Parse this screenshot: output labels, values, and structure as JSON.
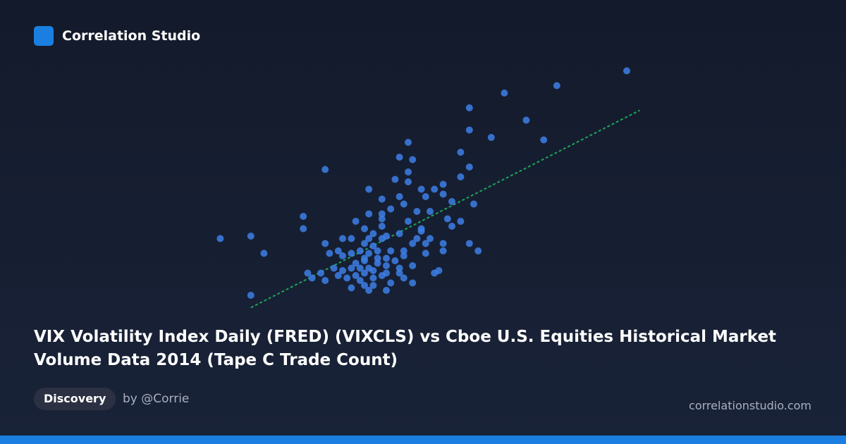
{
  "brand": "Correlation Studio",
  "tag": "Discovery",
  "author": "by @Corrie",
  "site": "correlationstudio.com",
  "chart_data": {
    "type": "scatter",
    "title": "VIX Volatility Index Daily (FRED) (VIXCLS) vs Cboe U.S. Equities Historical Market Volume Data 2014 (Tape C Trade Count)",
    "color": "#3d7fe6",
    "xlim": [
      0,
      100
    ],
    "ylim": [
      0,
      100
    ],
    "x": [
      95,
      67,
      79,
      59,
      72,
      59,
      64,
      76,
      45,
      57,
      43,
      46,
      59,
      26,
      45,
      57,
      42,
      45,
      53,
      36,
      51,
      39,
      43,
      49,
      53,
      55,
      60,
      2,
      9,
      12,
      21,
      21,
      9,
      57,
      61,
      59,
      53,
      53,
      52,
      51,
      46,
      40,
      36,
      32,
      22,
      26,
      50,
      47,
      41,
      36,
      39,
      54,
      55,
      48,
      47,
      43,
      39,
      33,
      30,
      29,
      27,
      32,
      35,
      37,
      41,
      44,
      49,
      49,
      46,
      43,
      40,
      37,
      33,
      30,
      28,
      25,
      23,
      26,
      29,
      35,
      38,
      40,
      36,
      35,
      39,
      37,
      35,
      42,
      44,
      32,
      33,
      37,
      39,
      41,
      35,
      40,
      34,
      38,
      36,
      40,
      45,
      48,
      46,
      32,
      30,
      34,
      37,
      43,
      44,
      31,
      44,
      48,
      39,
      50,
      36,
      35,
      38,
      34
    ],
    "values": [
      97,
      88,
      91,
      82,
      77,
      73,
      70,
      69,
      68,
      64,
      62,
      61,
      58,
      57,
      56,
      54,
      53,
      52,
      51,
      49,
      49,
      45,
      46,
      46,
      47,
      44,
      43,
      29,
      30,
      23,
      38,
      33,
      6,
      36,
      24,
      27,
      24,
      27,
      16,
      15,
      11,
      8,
      8,
      9,
      15,
      27,
      40,
      40,
      41,
      39,
      39,
      37,
      34,
      32,
      29,
      31,
      34,
      36,
      29,
      24,
      23,
      23,
      27,
      26,
      24,
      24,
      23,
      27,
      18,
      17,
      15,
      13,
      14,
      16,
      17,
      15,
      13,
      12,
      14,
      20,
      19,
      21,
      23,
      21,
      29,
      31,
      33,
      20,
      22,
      17,
      19,
      16,
      14,
      11,
      10,
      18,
      24,
      24,
      29,
      30,
      36,
      33,
      27,
      29,
      22,
      12,
      10,
      15,
      13,
      13,
      43,
      49,
      37,
      29,
      17,
      15,
      21,
      17
    ],
    "trend": {
      "x": [
        9,
        98
      ],
      "values": [
        1,
        81
      ],
      "color": "#1fa35a"
    }
  }
}
